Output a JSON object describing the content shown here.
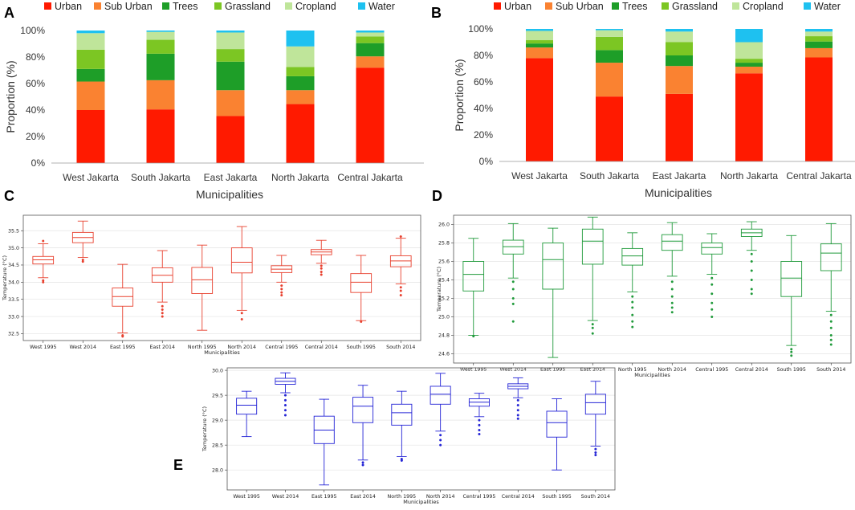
{
  "chart_data": [
    {
      "panel": "A",
      "type": "bar",
      "stacked": true,
      "categories": [
        "West Jakarta",
        "South Jakarta",
        "East Jakarta",
        "North Jakarta",
        "Central Jakarta"
      ],
      "series": [
        {
          "name": "Urban",
          "color": "#ff1a00",
          "values": [
            40,
            40.5,
            35.5,
            44.5,
            72
          ]
        },
        {
          "name": "Sub Urban",
          "color": "#fa8231",
          "values": [
            21.5,
            22,
            19.5,
            10.5,
            8.5
          ]
        },
        {
          "name": "Trees",
          "color": "#1e9e28",
          "values": [
            9.5,
            20,
            21.5,
            10.5,
            10
          ]
        },
        {
          "name": "Grassland",
          "color": "#7cc623",
          "values": [
            14.5,
            10.5,
            9.5,
            7,
            5
          ]
        },
        {
          "name": "Cropland",
          "color": "#bfe59a",
          "values": [
            12.5,
            6,
            12.5,
            15.5,
            3
          ]
        },
        {
          "name": "Water",
          "color": "#1ec1f0",
          "values": [
            2,
            1,
            1.5,
            12,
            1.5
          ]
        }
      ],
      "xlabel": "Municipalities",
      "ylabel": "Proportion (%)",
      "ylim": [
        0,
        100
      ],
      "yticks": [
        "0%",
        "20%",
        "40%",
        "60%",
        "80%",
        "100%"
      ],
      "legend": "top"
    },
    {
      "panel": "B",
      "type": "bar",
      "stacked": true,
      "categories": [
        "West Jakarta",
        "South Jakarta",
        "East Jakarta",
        "North Jakarta",
        "Central Jakarta"
      ],
      "series": [
        {
          "name": "Urban",
          "color": "#ff1a00",
          "values": [
            78,
            49,
            51,
            66.5,
            78.5
          ]
        },
        {
          "name": "Sub Urban",
          "color": "#fa8231",
          "values": [
            8,
            25.5,
            21,
            5,
            7
          ]
        },
        {
          "name": "Trees",
          "color": "#1e9e28",
          "values": [
            3,
            9.5,
            8,
            3,
            5
          ]
        },
        {
          "name": "Grassland",
          "color": "#7cc623",
          "values": [
            2.5,
            10,
            10,
            3,
            4
          ]
        },
        {
          "name": "Cropland",
          "color": "#bfe59a",
          "values": [
            7,
            5,
            8,
            12.5,
            3.5
          ]
        },
        {
          "name": "Water",
          "color": "#1ec1f0",
          "values": [
            1.5,
            1,
            2,
            10,
            2
          ]
        }
      ],
      "xlabel": "Municipalities",
      "ylabel": "Proportion (%)",
      "ylim": [
        0,
        100
      ],
      "yticks": [
        "0%",
        "20%",
        "40%",
        "60%",
        "80%",
        "100%"
      ],
      "legend": "top"
    },
    {
      "panel": "C",
      "type": "box",
      "color": "#e8402e",
      "categories": [
        "West 1995",
        "West 2014",
        "East 1995",
        "East 2014",
        "North 1995",
        "North 2014",
        "Central 1995",
        "Central 2014",
        "South 1995",
        "South 2014"
      ],
      "boxes": [
        {
          "wlo": 34.13,
          "q1": 34.53,
          "med": 34.65,
          "q3": 34.75,
          "whi": 35.12,
          "fliers": [
            34.05,
            34.0,
            35.2
          ]
        },
        {
          "wlo": 34.72,
          "q1": 35.15,
          "med": 35.3,
          "q3": 35.45,
          "whi": 35.78,
          "fliers": [
            34.65,
            34.6
          ]
        },
        {
          "wlo": 32.52,
          "q1": 33.3,
          "med": 33.58,
          "q3": 33.83,
          "whi": 34.52,
          "fliers": [
            32.45,
            32.42
          ]
        },
        {
          "wlo": 33.42,
          "q1": 34.0,
          "med": 34.2,
          "q3": 34.42,
          "whi": 34.92,
          "fliers": [
            33.3,
            33.2,
            33.1,
            33.0
          ]
        },
        {
          "wlo": 32.6,
          "q1": 33.67,
          "med": 34.07,
          "q3": 34.43,
          "whi": 35.08,
          "fliers": []
        },
        {
          "wlo": 33.18,
          "q1": 34.27,
          "med": 34.58,
          "q3": 35.0,
          "whi": 35.62,
          "fliers": [
            33.1,
            32.92
          ]
        },
        {
          "wlo": 34.0,
          "q1": 34.28,
          "med": 34.38,
          "q3": 34.48,
          "whi": 34.78,
          "fliers": [
            33.9,
            33.8,
            33.7,
            33.62
          ]
        },
        {
          "wlo": 34.55,
          "q1": 34.8,
          "med": 34.88,
          "q3": 34.95,
          "whi": 35.22,
          "fliers": [
            34.48,
            34.4,
            34.3,
            34.22
          ]
        },
        {
          "wlo": 32.88,
          "q1": 33.7,
          "med": 34.0,
          "q3": 34.25,
          "whi": 34.78,
          "fliers": [
            32.85
          ]
        },
        {
          "wlo": 33.95,
          "q1": 34.45,
          "med": 34.62,
          "q3": 34.77,
          "whi": 35.28,
          "fliers": [
            33.85,
            33.75,
            33.62,
            35.33
          ]
        }
      ],
      "xlabel": "Municipalities",
      "ylabel": "Temperature (°C)",
      "ylim": [
        32.3,
        35.95
      ],
      "yticks": [
        32.5,
        33.0,
        33.5,
        34.0,
        34.5,
        35.0,
        35.5
      ]
    },
    {
      "panel": "D",
      "type": "box",
      "color": "#1f9a3a",
      "categories": [
        "West 1995",
        "West 2014",
        "East 1995",
        "East 2014",
        "North 1995",
        "North 2014",
        "Central 1995",
        "Central 2014",
        "South 1995",
        "South 2014"
      ],
      "boxes": [
        {
          "wlo": 24.8,
          "q1": 25.28,
          "med": 25.46,
          "q3": 25.6,
          "whi": 25.85,
          "fliers": [
            24.79
          ]
        },
        {
          "wlo": 25.42,
          "q1": 25.68,
          "med": 25.76,
          "q3": 25.83,
          "whi": 26.01,
          "fliers": [
            25.38,
            25.3,
            25.2,
            25.14,
            24.95
          ]
        },
        {
          "wlo": 24.56,
          "q1": 25.3,
          "med": 25.62,
          "q3": 25.8,
          "whi": 25.96,
          "fliers": []
        },
        {
          "wlo": 24.96,
          "q1": 25.57,
          "med": 25.82,
          "q3": 25.95,
          "whi": 26.08,
          "fliers": [
            24.92,
            24.88,
            24.82
          ]
        },
        {
          "wlo": 25.27,
          "q1": 25.56,
          "med": 25.66,
          "q3": 25.74,
          "whi": 25.91,
          "fliers": [
            25.22,
            25.16,
            25.1,
            25.02,
            24.95,
            24.89
          ]
        },
        {
          "wlo": 25.44,
          "q1": 25.72,
          "med": 25.82,
          "q3": 25.89,
          "whi": 26.02,
          "fliers": [
            25.38,
            25.3,
            25.22,
            25.15,
            25.1,
            25.05
          ]
        },
        {
          "wlo": 25.46,
          "q1": 25.68,
          "med": 25.75,
          "q3": 25.8,
          "whi": 25.9,
          "fliers": [
            25.42,
            25.35,
            25.25,
            25.15,
            25.08,
            25.0
          ]
        },
        {
          "wlo": 25.72,
          "q1": 25.87,
          "med": 25.91,
          "q3": 25.95,
          "whi": 26.03,
          "fliers": [
            25.68,
            25.6,
            25.5,
            25.4,
            25.3,
            25.25
          ]
        },
        {
          "wlo": 24.69,
          "q1": 25.22,
          "med": 25.42,
          "q3": 25.6,
          "whi": 25.88,
          "fliers": [
            24.65,
            24.62,
            24.58
          ]
        },
        {
          "wlo": 25.06,
          "q1": 25.5,
          "med": 25.69,
          "q3": 25.79,
          "whi": 26.01,
          "fliers": [
            25.02,
            24.95,
            24.88,
            24.8,
            24.75,
            24.7
          ]
        }
      ],
      "xlabel": "Municipalities",
      "ylabel": "Temperature (°C)",
      "ylim": [
        24.5,
        26.1
      ],
      "yticks": [
        24.6,
        24.8,
        25.0,
        25.2,
        25.4,
        25.6,
        25.8,
        26.0
      ]
    },
    {
      "panel": "E",
      "type": "box",
      "color": "#2424d6",
      "categories": [
        "West 1995",
        "West 2014",
        "East 1995",
        "East 2014",
        "North 1995",
        "North 2014",
        "Central 1995",
        "Central 2014",
        "South 1995",
        "South 2014"
      ],
      "boxes": [
        {
          "wlo": 28.67,
          "q1": 29.12,
          "med": 29.3,
          "q3": 29.44,
          "whi": 29.58,
          "fliers": []
        },
        {
          "wlo": 29.55,
          "q1": 29.72,
          "med": 29.78,
          "q3": 29.84,
          "whi": 29.95,
          "fliers": [
            29.5,
            29.4,
            29.3,
            29.2,
            29.1
          ]
        },
        {
          "wlo": 27.7,
          "q1": 28.53,
          "med": 28.8,
          "q3": 29.08,
          "whi": 29.42,
          "fliers": []
        },
        {
          "wlo": 28.2,
          "q1": 28.95,
          "med": 29.28,
          "q3": 29.46,
          "whi": 29.7,
          "fliers": [
            28.15,
            28.1
          ]
        },
        {
          "wlo": 28.27,
          "q1": 28.9,
          "med": 29.15,
          "q3": 29.32,
          "whi": 29.58,
          "fliers": [
            28.22,
            28.19
          ]
        },
        {
          "wlo": 28.78,
          "q1": 29.32,
          "med": 29.52,
          "q3": 29.68,
          "whi": 29.94,
          "fliers": [
            28.7,
            28.6,
            28.5
          ]
        },
        {
          "wlo": 29.07,
          "q1": 29.28,
          "med": 29.36,
          "q3": 29.43,
          "whi": 29.54,
          "fliers": [
            29.0,
            28.9,
            28.8,
            28.72
          ]
        },
        {
          "wlo": 29.45,
          "q1": 29.63,
          "med": 29.68,
          "q3": 29.73,
          "whi": 29.85,
          "fliers": [
            29.4,
            29.3,
            29.2,
            29.1,
            29.03
          ]
        },
        {
          "wlo": 28.0,
          "q1": 28.66,
          "med": 28.95,
          "q3": 29.18,
          "whi": 29.43,
          "fliers": []
        },
        {
          "wlo": 28.48,
          "q1": 29.12,
          "med": 29.35,
          "q3": 29.52,
          "whi": 29.78,
          "fliers": [
            28.42,
            28.35,
            28.3
          ]
        }
      ],
      "xlabel": "Municipalities",
      "ylabel": "Temperature (°C)",
      "ylim": [
        27.6,
        30.05
      ],
      "yticks": [
        28.0,
        28.5,
        29.0,
        29.5,
        30.0
      ]
    }
  ]
}
